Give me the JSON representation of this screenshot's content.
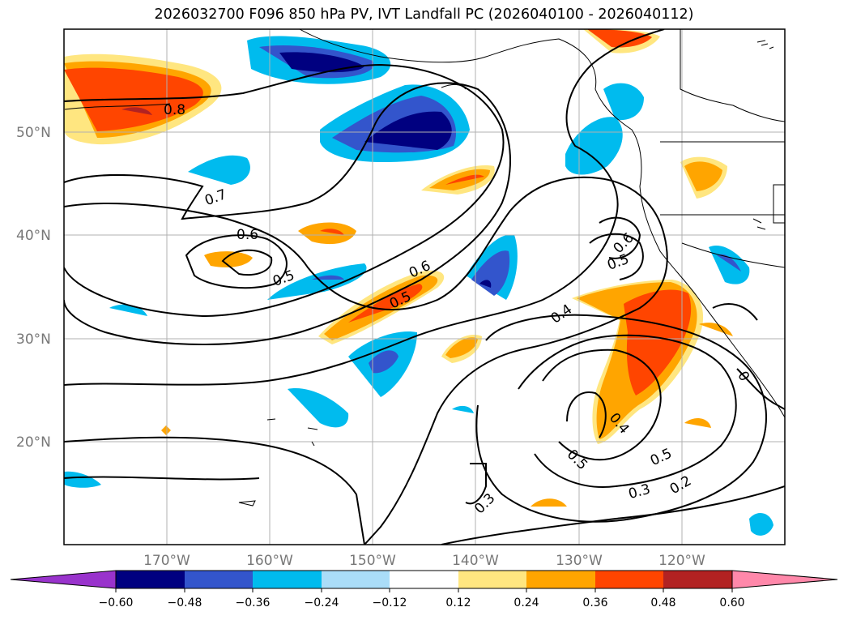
{
  "title": "2026032700 F096 850 hPa PV, IVT Landfall PC (2026040100 - 2026040112)",
  "map": {
    "lon_ticks": [
      "170°W",
      "160°W",
      "150°W",
      "140°W",
      "130°W",
      "120°W"
    ],
    "lat_ticks": [
      "50°N",
      "40°N",
      "30°N",
      "20°N"
    ],
    "contour_labels": [
      "0.8",
      "0.7",
      "0.6",
      "0.5",
      "0.6",
      "0.5",
      "0.6",
      "0.5",
      "0.4",
      "0.4",
      "0.5",
      "0.5",
      "0.3",
      "0.3",
      "0.2",
      "0"
    ],
    "gridlines": true,
    "coastlines": true
  },
  "colorbar": {
    "levels": [
      "−0.60",
      "−0.48",
      "−0.36",
      "−0.24",
      "−0.12",
      "0.12",
      "0.24",
      "0.36",
      "0.48",
      "0.60"
    ],
    "colors": [
      "#9933cc",
      "#000080",
      "#3355cc",
      "#00bbee",
      "#aaddf8",
      "#ffffff",
      "#ffe680",
      "#ffa500",
      "#ff4500",
      "#b22222",
      "#ff88aa"
    ],
    "extend": "both"
  }
}
